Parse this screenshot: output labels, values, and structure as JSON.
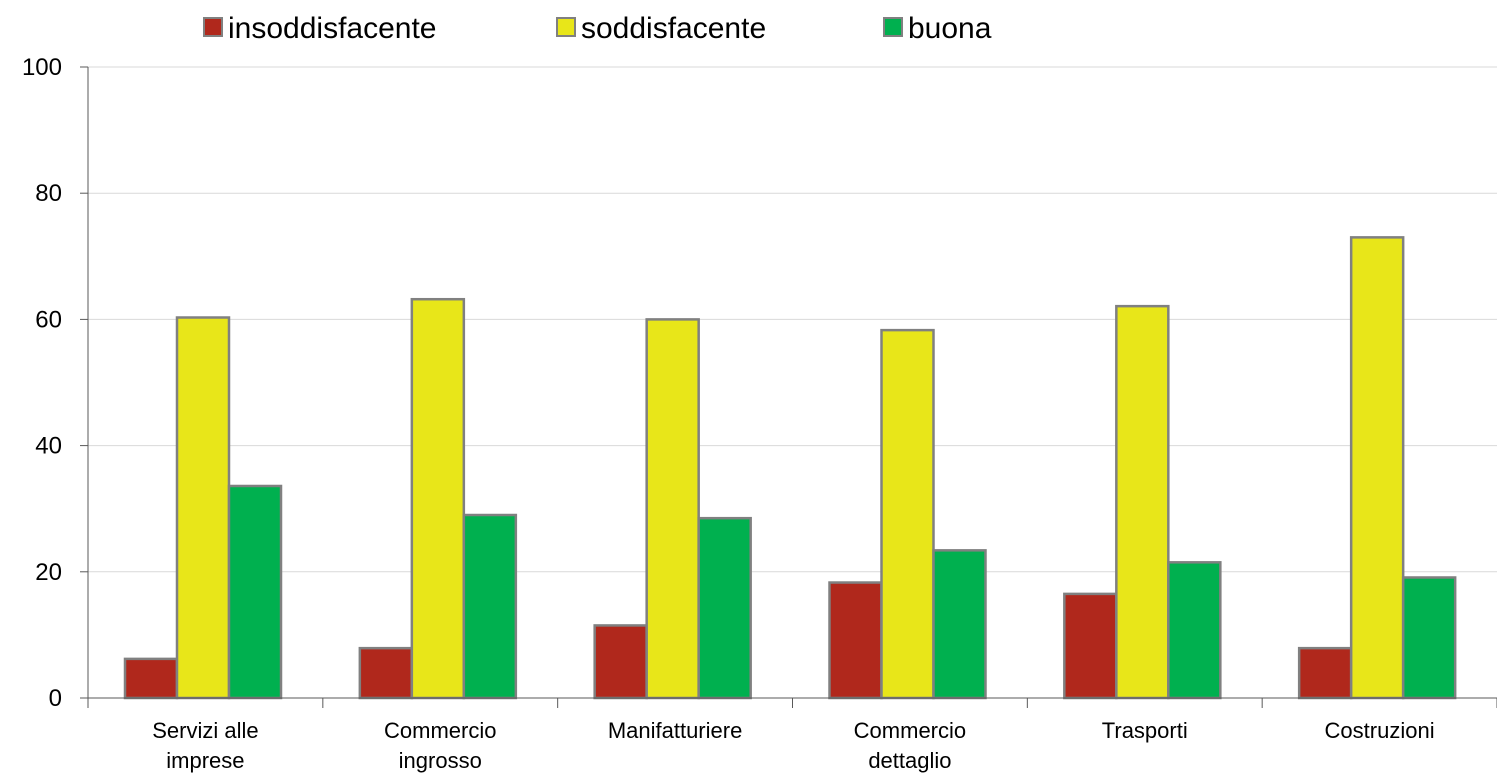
{
  "chart_data": {
    "type": "bar",
    "categories": [
      [
        "Servizi alle",
        "imprese"
      ],
      [
        "Commercio",
        "ingrosso"
      ],
      [
        "Manifatturiere"
      ],
      [
        "Commercio",
        "dettaglio"
      ],
      [
        "Trasporti"
      ],
      [
        "Costruzioni"
      ]
    ],
    "series": [
      {
        "name": "insoddisfacente",
        "color": "#b0281c",
        "values": [
          6.2,
          7.9,
          11.5,
          18.3,
          16.5,
          7.9
        ]
      },
      {
        "name": "soddisfacente",
        "color": "#e8e619",
        "values": [
          60.3,
          63.2,
          60.0,
          58.3,
          62.1,
          73.0
        ]
      },
      {
        "name": "buona",
        "color": "#00b04f",
        "values": [
          33.6,
          29.0,
          28.5,
          23.4,
          21.5,
          19.1
        ]
      }
    ],
    "ylim": [
      0,
      100
    ],
    "yticks": [
      "0",
      "20",
      "40",
      "60",
      "80",
      "100"
    ],
    "grid": true,
    "legend": "top",
    "bar_edge_color": "#808080"
  }
}
